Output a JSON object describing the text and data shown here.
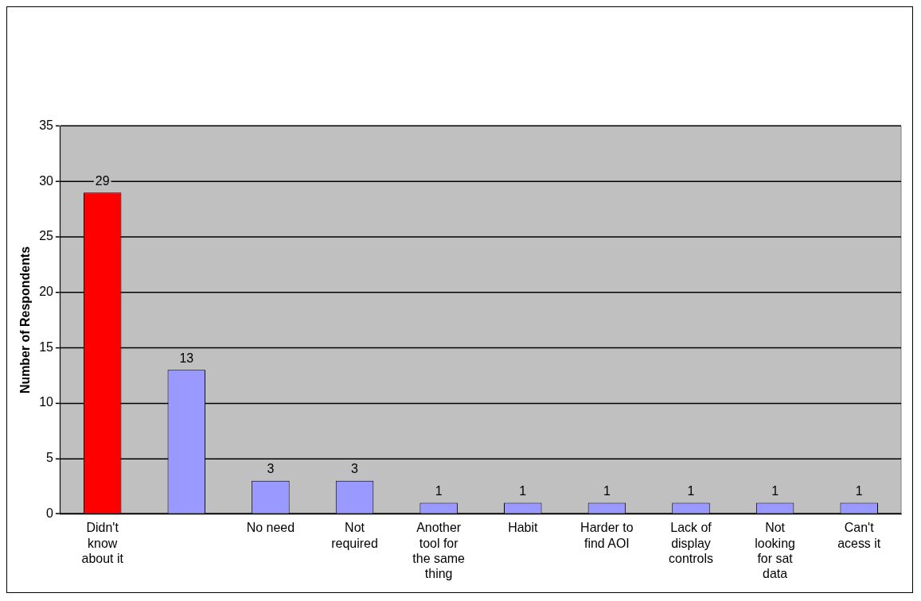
{
  "chart_data": {
    "type": "bar",
    "ylabel": "Number of Respondents",
    "categories": [
      "Didn't know about it",
      null,
      "No need",
      "Not required",
      "Another tool for the same thing",
      "Habit",
      "Harder to find AOI",
      "Lack of display controls",
      "Not looking for sat data",
      "Can't acess it"
    ],
    "values": [
      29,
      13,
      3,
      3,
      1,
      1,
      1,
      1,
      1,
      1
    ],
    "colors": [
      "#ff0000",
      "#9999ff",
      "#9999ff",
      "#9999ff",
      "#9999ff",
      "#9999ff",
      "#9999ff",
      "#9999ff",
      "#9999ff",
      "#9999ff"
    ],
    "ylim": [
      0,
      35
    ],
    "yticks": [
      0,
      5,
      10,
      15,
      20,
      25,
      30,
      35
    ],
    "grid": "y",
    "legend": false,
    "data_labels": true
  }
}
